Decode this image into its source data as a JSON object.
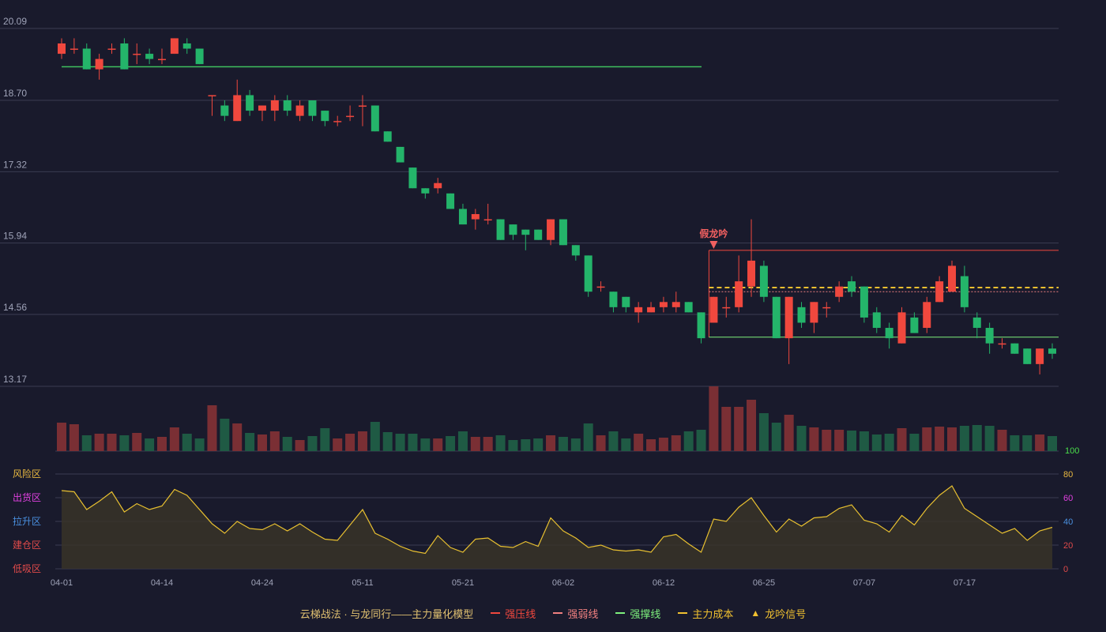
{
  "chart_data": {
    "type": "candlestick",
    "price_axis": {
      "ticks": [
        20.09,
        18.7,
        17.32,
        15.94,
        14.56,
        13.17
      ]
    },
    "x_axis": {
      "tick_labels": [
        "04-01",
        "04-14",
        "04-24",
        "05-11",
        "05-21",
        "06-02",
        "06-12",
        "06-25",
        "07-07",
        "07-17"
      ]
    },
    "volume_axis": {
      "label": "100"
    },
    "osc_axis": {
      "ticks": [
        "80",
        "60",
        "40",
        "20",
        "0"
      ],
      "zones": [
        "风险区",
        "出货区",
        "拉升区",
        "建仓区",
        "低吸区"
      ],
      "zone_colors": [
        "#e8b840",
        "#e040e0",
        "#4a90e0",
        "#e04a4a",
        "#e04a4a"
      ]
    },
    "annotation": {
      "text": "假龙吟",
      "color": "#f26060"
    },
    "levels": {
      "support_old": 19.35,
      "pressure": 15.8,
      "weak": 15.0,
      "cost": 15.08,
      "support": 14.12
    },
    "colors": {
      "up": "#f0483e",
      "down": "#24b46a",
      "pressure": "#f0483e",
      "weak": "#f08080",
      "support": "#7df07d",
      "cost": "#f0c030",
      "osc": "#e8c030",
      "grid": "#3a3c52",
      "axis_text": "#9fa3b8"
    },
    "candles": [
      [
        19.6,
        19.8,
        19.9,
        19.5
      ],
      [
        19.7,
        19.7,
        19.9,
        19.6
      ],
      [
        19.7,
        19.3,
        19.8,
        19.3
      ],
      [
        19.3,
        19.5,
        19.6,
        19.1
      ],
      [
        19.7,
        19.7,
        19.8,
        19.6
      ],
      [
        19.8,
        19.3,
        19.9,
        19.3
      ],
      [
        19.6,
        19.6,
        19.8,
        19.4
      ],
      [
        19.6,
        19.5,
        19.7,
        19.4
      ],
      [
        19.5,
        19.5,
        19.7,
        19.4
      ],
      [
        19.6,
        19.9,
        19.9,
        19.6
      ],
      [
        19.8,
        19.7,
        19.9,
        19.6
      ],
      [
        19.7,
        19.4,
        19.7,
        19.4
      ],
      [
        18.8,
        18.8,
        18.8,
        18.4
      ],
      [
        18.6,
        18.4,
        18.7,
        18.3
      ],
      [
        18.3,
        18.8,
        19.1,
        18.3
      ],
      [
        18.8,
        18.5,
        18.9,
        18.4
      ],
      [
        18.5,
        18.6,
        18.6,
        18.3
      ],
      [
        18.5,
        18.7,
        18.8,
        18.3
      ],
      [
        18.7,
        18.5,
        18.8,
        18.4
      ],
      [
        18.4,
        18.6,
        18.7,
        18.3
      ],
      [
        18.7,
        18.4,
        18.7,
        18.3
      ],
      [
        18.5,
        18.3,
        18.5,
        18.2
      ],
      [
        18.3,
        18.3,
        18.4,
        18.2
      ],
      [
        18.4,
        18.4,
        18.6,
        18.3
      ],
      [
        18.6,
        18.6,
        18.8,
        18.2
      ],
      [
        18.6,
        18.1,
        18.6,
        18.1
      ],
      [
        18.1,
        17.9,
        18.1,
        17.9
      ],
      [
        17.8,
        17.5,
        17.8,
        17.5
      ],
      [
        17.4,
        17.0,
        17.4,
        17.0
      ],
      [
        17.0,
        16.9,
        17.0,
        16.8
      ],
      [
        17.0,
        17.1,
        17.2,
        16.9
      ],
      [
        16.9,
        16.6,
        16.9,
        16.6
      ],
      [
        16.6,
        16.3,
        16.7,
        16.3
      ],
      [
        16.4,
        16.5,
        16.6,
        16.2
      ],
      [
        16.4,
        16.4,
        16.7,
        16.3
      ],
      [
        16.4,
        16.0,
        16.4,
        16.0
      ],
      [
        16.3,
        16.1,
        16.3,
        16.0
      ],
      [
        16.2,
        16.1,
        16.2,
        15.8
      ],
      [
        16.2,
        16.0,
        16.2,
        16.0
      ],
      [
        16.0,
        16.4,
        16.4,
        15.9
      ],
      [
        16.4,
        15.9,
        16.4,
        15.9
      ],
      [
        15.9,
        15.7,
        15.9,
        15.6
      ],
      [
        15.7,
        15.0,
        15.7,
        14.9
      ],
      [
        15.1,
        15.1,
        15.2,
        15.0
      ],
      [
        15.0,
        14.7,
        15.0,
        14.6
      ],
      [
        14.9,
        14.7,
        14.9,
        14.6
      ],
      [
        14.6,
        14.7,
        14.8,
        14.4
      ],
      [
        14.6,
        14.7,
        14.8,
        14.6
      ],
      [
        14.7,
        14.8,
        14.9,
        14.6
      ],
      [
        14.7,
        14.8,
        15.0,
        14.6
      ],
      [
        14.8,
        14.6,
        14.8,
        14.6
      ],
      [
        14.6,
        14.1,
        14.6,
        14.0
      ],
      [
        14.4,
        14.9,
        14.9,
        14.4
      ],
      [
        14.7,
        14.7,
        14.9,
        14.5
      ],
      [
        14.7,
        15.2,
        15.7,
        14.6
      ],
      [
        15.1,
        15.6,
        16.4,
        14.9
      ],
      [
        15.5,
        14.9,
        15.6,
        14.8
      ],
      [
        14.9,
        14.1,
        14.9,
        14.1
      ],
      [
        14.1,
        14.9,
        14.9,
        13.6
      ],
      [
        14.7,
        14.4,
        14.8,
        14.3
      ],
      [
        14.4,
        14.8,
        14.8,
        14.2
      ],
      [
        14.7,
        14.7,
        14.8,
        14.5
      ],
      [
        14.9,
        15.1,
        15.2,
        14.8
      ],
      [
        15.2,
        15.0,
        15.3,
        14.9
      ],
      [
        15.1,
        14.5,
        15.1,
        14.4
      ],
      [
        14.6,
        14.3,
        14.7,
        14.2
      ],
      [
        14.3,
        14.1,
        14.4,
        13.9
      ],
      [
        14.0,
        14.6,
        14.7,
        14.0
      ],
      [
        14.5,
        14.2,
        14.6,
        14.2
      ],
      [
        14.3,
        14.8,
        14.9,
        14.2
      ],
      [
        14.8,
        15.2,
        15.3,
        14.8
      ],
      [
        15.0,
        15.5,
        15.6,
        15.0
      ],
      [
        15.3,
        14.7,
        15.5,
        14.6
      ],
      [
        14.5,
        14.3,
        14.6,
        14.1
      ],
      [
        14.3,
        14.0,
        14.4,
        13.8
      ],
      [
        14.0,
        14.0,
        14.1,
        13.9
      ],
      [
        14.0,
        13.8,
        14.0,
        13.8
      ],
      [
        13.9,
        13.6,
        13.9,
        13.6
      ],
      [
        13.6,
        13.9,
        13.9,
        13.4
      ],
      [
        13.9,
        13.8,
        14.0,
        13.7
      ]
    ],
    "volume": [
      36,
      34,
      20,
      22,
      22,
      20,
      23,
      16,
      18,
      30,
      22,
      16,
      58,
      41,
      35,
      23,
      21,
      25,
      18,
      14,
      19,
      29,
      16,
      22,
      25,
      37,
      24,
      22,
      22,
      16,
      16,
      19,
      25,
      18,
      18,
      20,
      14,
      15,
      16,
      20,
      18,
      16,
      35,
      20,
      25,
      16,
      22,
      15,
      17,
      20,
      25,
      27,
      82,
      56,
      56,
      65,
      48,
      36,
      46,
      32,
      30,
      27,
      27,
      26,
      25,
      21,
      22,
      29,
      22,
      30,
      31,
      30,
      32,
      33,
      32,
      27,
      20,
      20,
      21,
      19
    ],
    "osc": [
      66,
      65,
      50,
      57,
      65,
      48,
      55,
      50,
      53,
      67,
      62,
      50,
      38,
      30,
      40,
      34,
      33,
      38,
      32,
      38,
      31,
      25,
      24,
      37,
      50,
      30,
      25,
      19,
      15,
      13,
      28,
      18,
      14,
      25,
      26,
      19,
      18,
      23,
      19,
      43,
      32,
      26,
      18,
      20,
      16,
      15,
      16,
      14,
      27,
      29,
      21,
      14,
      42,
      40,
      52,
      60,
      45,
      31,
      42,
      36,
      43,
      44,
      51,
      54,
      41,
      38,
      31,
      45,
      37,
      51,
      62,
      70,
      51,
      44,
      37,
      30,
      34,
      24,
      32,
      35
    ]
  },
  "legend": [
    {
      "label": "云梯战法 · 与龙同行——主力量化模型",
      "color": "#e0c070",
      "style": "none"
    },
    {
      "label": "强压线",
      "color": "#f0483e",
      "style": "solid"
    },
    {
      "label": "强弱线",
      "color": "#f08080",
      "style": "dashed"
    },
    {
      "label": "强撑线",
      "color": "#7df07d",
      "style": "solid"
    },
    {
      "label": "主力成本",
      "color": "#f0c030",
      "style": "dashed"
    },
    {
      "label": "龙吟信号",
      "color": "#f0c030",
      "style": "triangle"
    }
  ]
}
